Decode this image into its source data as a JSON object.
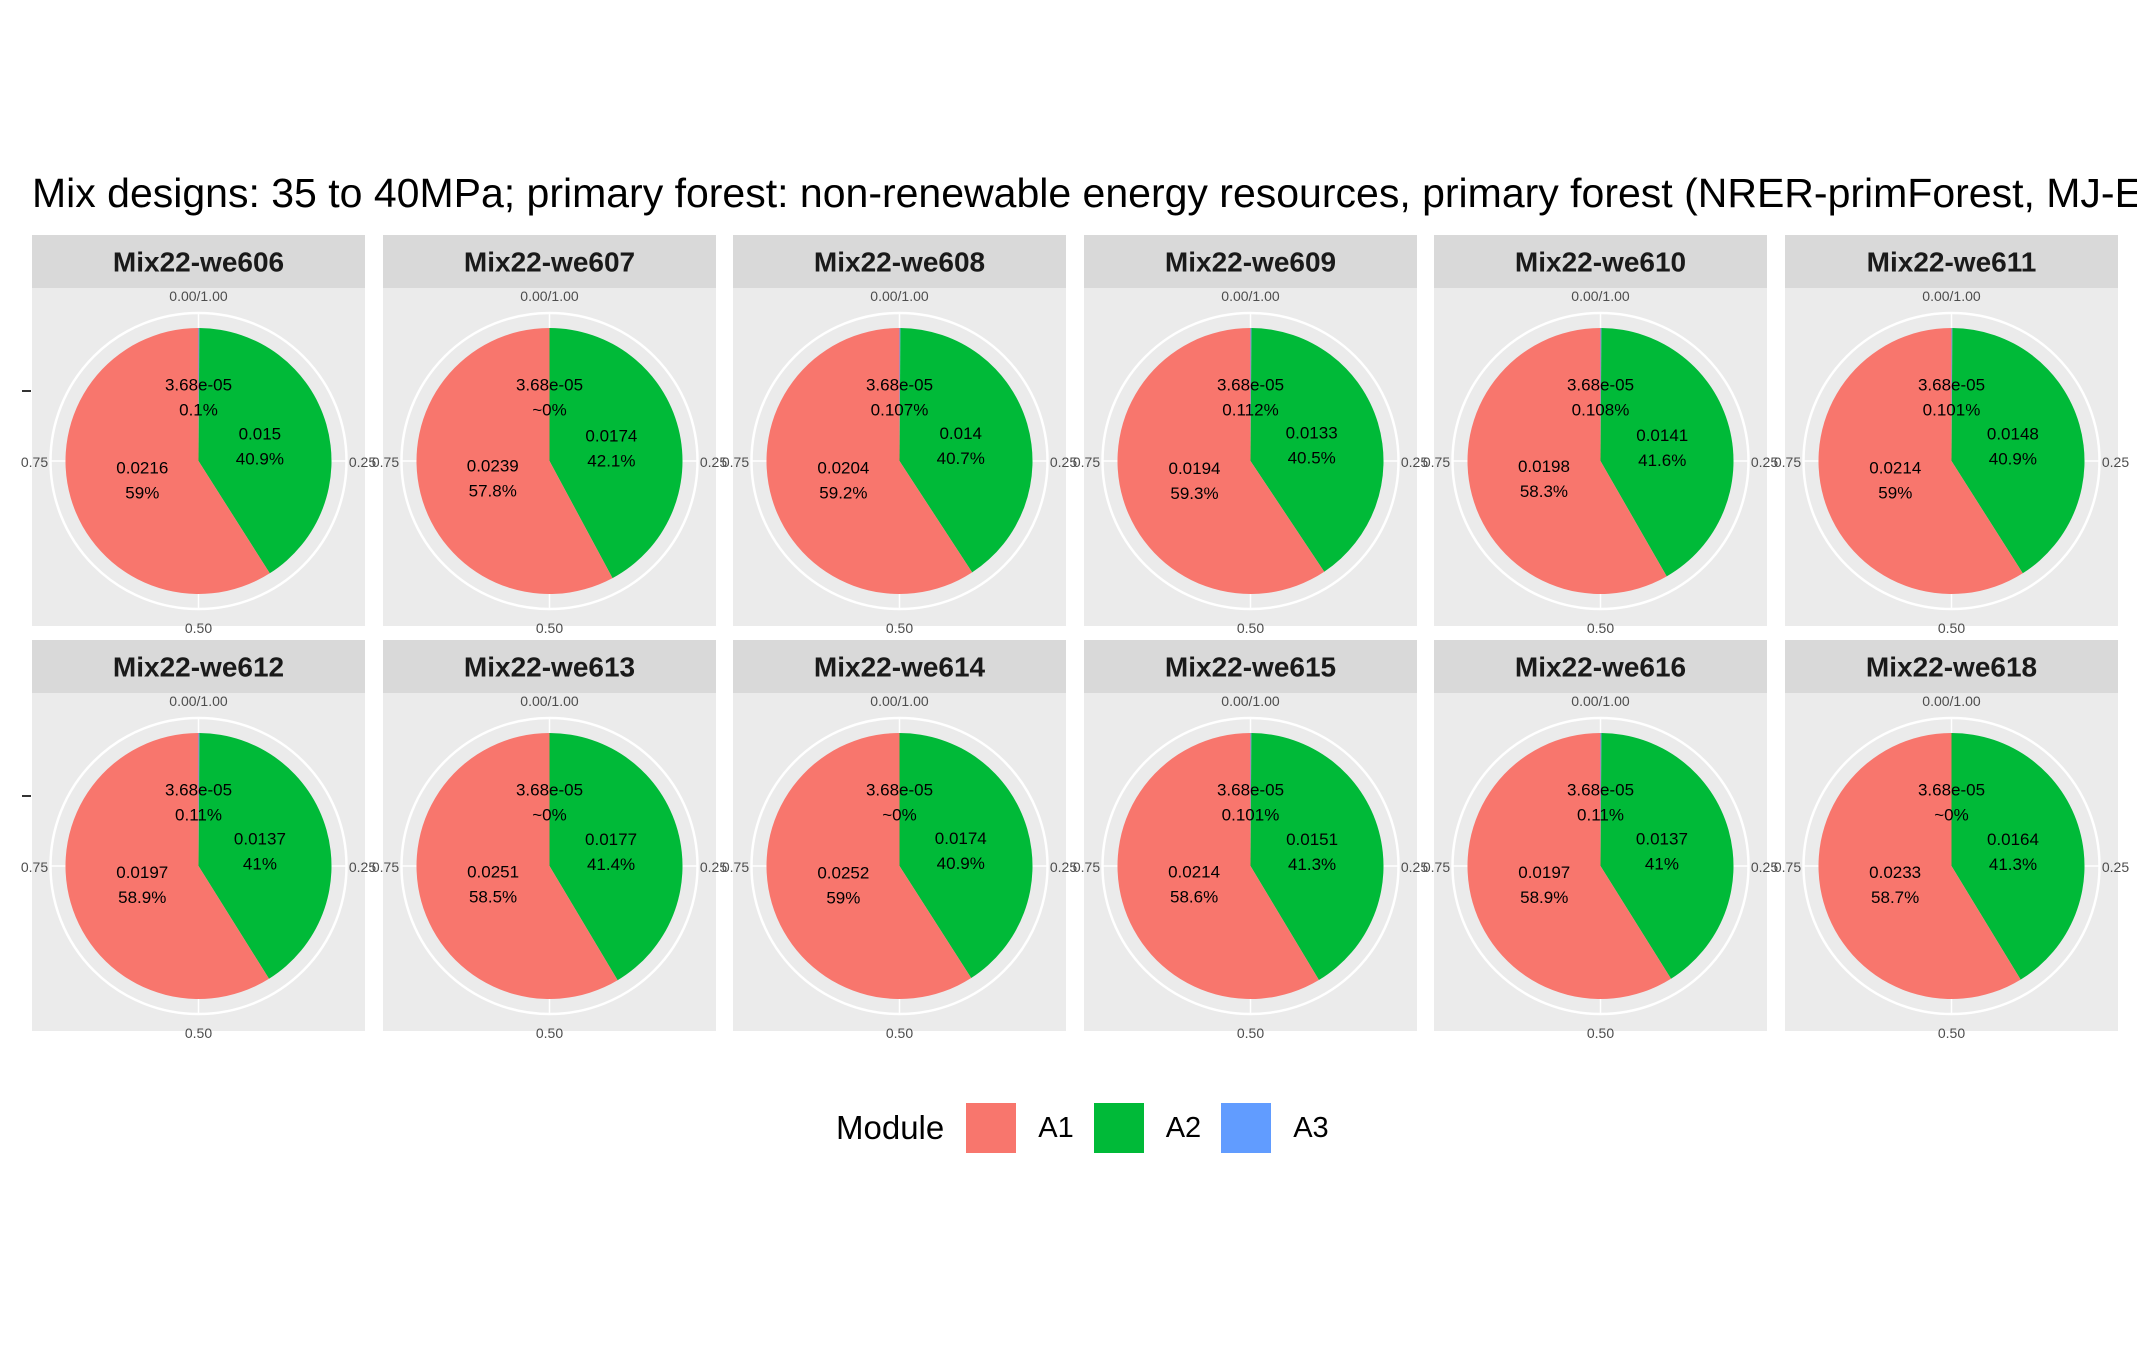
{
  "chart_data": {
    "type": "pie",
    "title": "Mix designs: 35 to 40MPa; primary forest: non-renewable energy resources, primary forest (NRER-primForest, MJ-E",
    "theta_axis_ticks": [
      "0.00/1.00",
      "0.25",
      "0.50",
      "0.75"
    ],
    "legend": {
      "title": "Module",
      "position": "bottom",
      "entries": [
        {
          "name": "A1",
          "color": "#F8766D"
        },
        {
          "name": "A2",
          "color": "#00BA38"
        },
        {
          "name": "A3",
          "color": "#619CFF"
        }
      ]
    },
    "facets": [
      {
        "name": "Mix22-we606",
        "slices": [
          {
            "module": "A3",
            "value_label": "3.68e-05",
            "pct_label": "0.1%",
            "share": 0.001
          },
          {
            "module": "A2",
            "value_label": "0.015",
            "pct_label": "40.9%",
            "share": 0.409
          },
          {
            "module": "A1",
            "value_label": "0.0216",
            "pct_label": "59%",
            "share": 0.59
          }
        ]
      },
      {
        "name": "Mix22-we607",
        "slices": [
          {
            "module": "A3",
            "value_label": "3.68e-05",
            "pct_label": "~0%",
            "share": 0.0
          },
          {
            "module": "A2",
            "value_label": "0.0174",
            "pct_label": "42.1%",
            "share": 0.421
          },
          {
            "module": "A1",
            "value_label": "0.0239",
            "pct_label": "57.8%",
            "share": 0.578
          }
        ]
      },
      {
        "name": "Mix22-we608",
        "slices": [
          {
            "module": "A3",
            "value_label": "3.68e-05",
            "pct_label": "0.107%",
            "share": 0.00107
          },
          {
            "module": "A2",
            "value_label": "0.014",
            "pct_label": "40.7%",
            "share": 0.407
          },
          {
            "module": "A1",
            "value_label": "0.0204",
            "pct_label": "59.2%",
            "share": 0.592
          }
        ]
      },
      {
        "name": "Mix22-we609",
        "slices": [
          {
            "module": "A3",
            "value_label": "3.68e-05",
            "pct_label": "0.112%",
            "share": 0.00112
          },
          {
            "module": "A2",
            "value_label": "0.0133",
            "pct_label": "40.5%",
            "share": 0.405
          },
          {
            "module": "A1",
            "value_label": "0.0194",
            "pct_label": "59.3%",
            "share": 0.593
          }
        ]
      },
      {
        "name": "Mix22-we610",
        "slices": [
          {
            "module": "A3",
            "value_label": "3.68e-05",
            "pct_label": "0.108%",
            "share": 0.00108
          },
          {
            "module": "A2",
            "value_label": "0.0141",
            "pct_label": "41.6%",
            "share": 0.416
          },
          {
            "module": "A1",
            "value_label": "0.0198",
            "pct_label": "58.3%",
            "share": 0.583
          }
        ]
      },
      {
        "name": "Mix22-we611",
        "slices": [
          {
            "module": "A3",
            "value_label": "3.68e-05",
            "pct_label": "0.101%",
            "share": 0.00101
          },
          {
            "module": "A2",
            "value_label": "0.0148",
            "pct_label": "40.9%",
            "share": 0.409
          },
          {
            "module": "A1",
            "value_label": "0.0214",
            "pct_label": "59%",
            "share": 0.59
          }
        ]
      },
      {
        "name": "Mix22-we612",
        "slices": [
          {
            "module": "A3",
            "value_label": "3.68e-05",
            "pct_label": "0.11%",
            "share": 0.0011
          },
          {
            "module": "A2",
            "value_label": "0.0137",
            "pct_label": "41%",
            "share": 0.41
          },
          {
            "module": "A1",
            "value_label": "0.0197",
            "pct_label": "58.9%",
            "share": 0.589
          }
        ]
      },
      {
        "name": "Mix22-we613",
        "slices": [
          {
            "module": "A3",
            "value_label": "3.68e-05",
            "pct_label": "~0%",
            "share": 0.0
          },
          {
            "module": "A2",
            "value_label": "0.0177",
            "pct_label": "41.4%",
            "share": 0.414
          },
          {
            "module": "A1",
            "value_label": "0.0251",
            "pct_label": "58.5%",
            "share": 0.585
          }
        ]
      },
      {
        "name": "Mix22-we614",
        "slices": [
          {
            "module": "A3",
            "value_label": "3.68e-05",
            "pct_label": "~0%",
            "share": 0.0
          },
          {
            "module": "A2",
            "value_label": "0.0174",
            "pct_label": "40.9%",
            "share": 0.409
          },
          {
            "module": "A1",
            "value_label": "0.0252",
            "pct_label": "59%",
            "share": 0.59
          }
        ]
      },
      {
        "name": "Mix22-we615",
        "slices": [
          {
            "module": "A3",
            "value_label": "3.68e-05",
            "pct_label": "0.101%",
            "share": 0.00101
          },
          {
            "module": "A2",
            "value_label": "0.0151",
            "pct_label": "41.3%",
            "share": 0.413
          },
          {
            "module": "A1",
            "value_label": "0.0214",
            "pct_label": "58.6%",
            "share": 0.586
          }
        ]
      },
      {
        "name": "Mix22-we616",
        "slices": [
          {
            "module": "A3",
            "value_label": "3.68e-05",
            "pct_label": "0.11%",
            "share": 0.0011
          },
          {
            "module": "A2",
            "value_label": "0.0137",
            "pct_label": "41%",
            "share": 0.41
          },
          {
            "module": "A1",
            "value_label": "0.0197",
            "pct_label": "58.9%",
            "share": 0.589
          }
        ]
      },
      {
        "name": "Mix22-we618",
        "slices": [
          {
            "module": "A3",
            "value_label": "3.68e-05",
            "pct_label": "~0%",
            "share": 0.0
          },
          {
            "module": "A2",
            "value_label": "0.0164",
            "pct_label": "41.3%",
            "share": 0.413
          },
          {
            "module": "A1",
            "value_label": "0.0233",
            "pct_label": "58.7%",
            "share": 0.587
          }
        ]
      }
    ]
  }
}
